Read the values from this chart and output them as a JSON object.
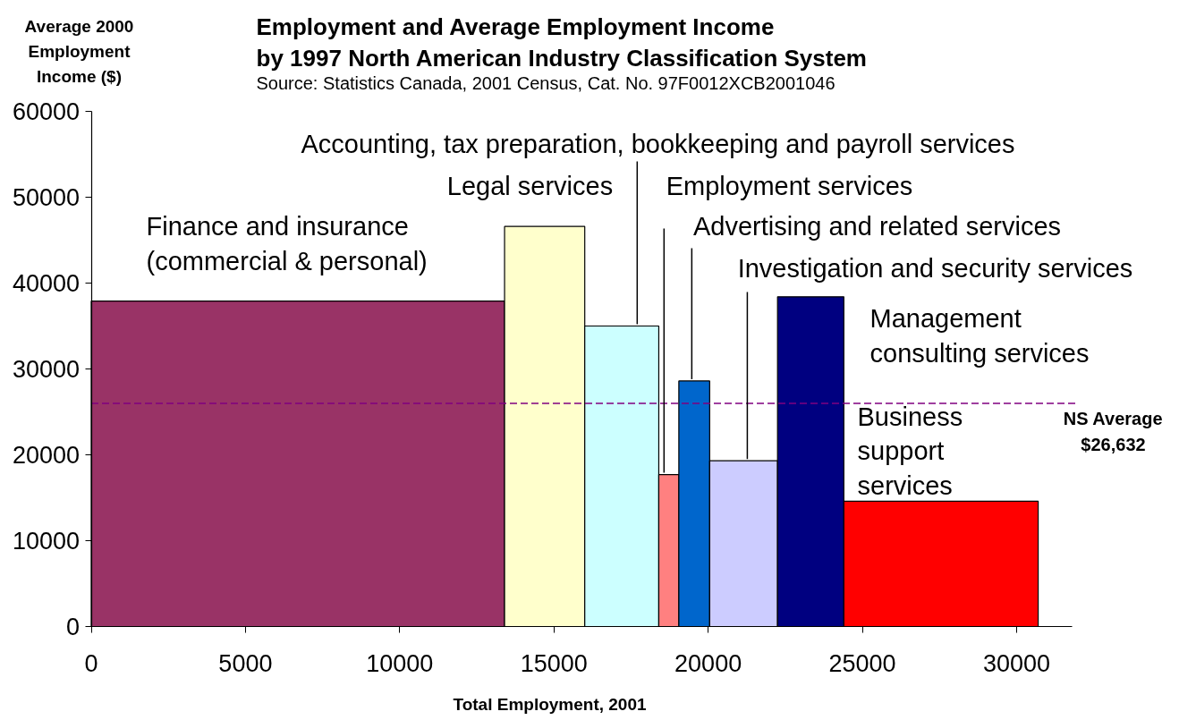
{
  "chart_data": {
    "type": "histogram",
    "title": "Employment and Average Employment Income\nby 1997 North American Industry Classification System",
    "subtitle": "Source: Statistics Canada, 2001 Census, Cat. No. 97F0012XCB2001046",
    "xlabel": "Total Employment, 2001",
    "ylabel": "Average 2000\nEmployment\nIncome ($)",
    "bins": [
      0,
      13400,
      16000,
      18400,
      19050,
      20050,
      22250,
      24400,
      30700
    ],
    "values": [
      37900,
      46600,
      35000,
      17700,
      28600,
      19300,
      38400,
      14600
    ],
    "colors": [
      "#993366",
      "#ffffcc",
      "#ccffff",
      "#ff8080",
      "#0066cc",
      "#ccccff",
      "#000080",
      "#ff0000"
    ],
    "xlim": [
      0,
      31800
    ],
    "xticks": [
      0,
      5000,
      10000,
      15000,
      20000,
      25000,
      30000
    ],
    "ylim": [
      0,
      60000
    ],
    "yticks": [
      0,
      10000,
      20000,
      30000,
      40000,
      50000,
      60000
    ],
    "grid": false,
    "ref_lines": [
      {
        "axis": "y",
        "value": 26000,
        "label": "NS Average\n$26,632",
        "color": "#800080",
        "line_style": "dashed"
      }
    ],
    "annotations": [
      "Finance and insurance\n(commercial & personal)",
      "Legal services",
      {
        "text": "Accounting, tax preparation, bookkeeping and payroll services",
        "x": 17700,
        "y": 35000
      },
      {
        "text": "Employment services",
        "x": 18570,
        "y": 17700
      },
      {
        "text": "Advertising and related services",
        "x": 19470,
        "y": 28600
      },
      {
        "text": "Investigation and security services",
        "x": 21270,
        "y": 19300
      },
      "Management\nconsulting services",
      "Business\nsupport\nservices"
    ]
  }
}
